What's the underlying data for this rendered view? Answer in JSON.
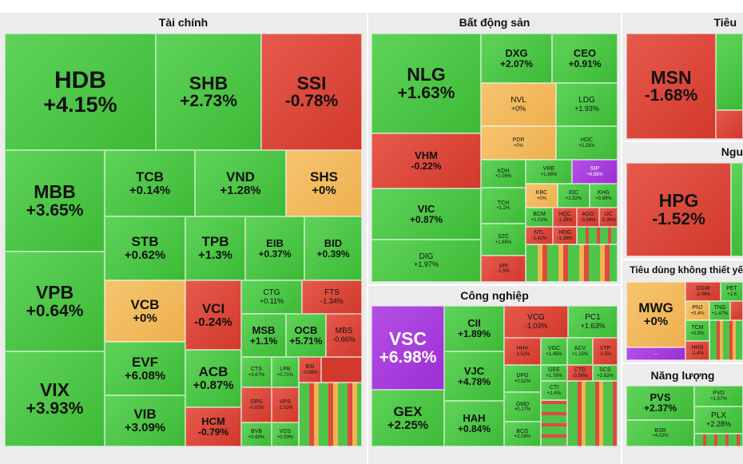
{
  "sectors": {
    "finance": "Tài chính",
    "realestate": "Bất động sản",
    "industrial": "Công nghiệp",
    "staples": "Tiêu",
    "materials": "Ngu",
    "discretionary": "Tiêu dùng không thiết yế",
    "energy": "Năng lượng"
  },
  "more": "...",
  "tiles": {
    "HDB": {
      "t": "HDB",
      "p": "+4.15%"
    },
    "SHB": {
      "t": "SHB",
      "p": "+2.73%"
    },
    "SSI": {
      "t": "SSI",
      "p": "-0.78%"
    },
    "MBB": {
      "t": "MBB",
      "p": "+3.65%"
    },
    "TCB": {
      "t": "TCB",
      "p": "+0.14%"
    },
    "VND": {
      "t": "VND",
      "p": "+1.28%"
    },
    "SHS": {
      "t": "SHS",
      "p": "+0%"
    },
    "STB": {
      "t": "STB",
      "p": "+0.62%"
    },
    "TPB": {
      "t": "TPB",
      "p": "+1.3%"
    },
    "EIB": {
      "t": "EIB",
      "p": "+0.37%"
    },
    "BID": {
      "t": "BID",
      "p": "+0.39%"
    },
    "VPB": {
      "t": "VPB",
      "p": "+0.64%"
    },
    "VCB": {
      "t": "VCB",
      "p": "+0%"
    },
    "VCI": {
      "t": "VCI",
      "p": "-0.24%"
    },
    "CTG": {
      "t": "CTG",
      "p": "+0.11%"
    },
    "FTS": {
      "t": "FTS",
      "p": "-1.34%"
    },
    "MSB": {
      "t": "MSB",
      "p": "+1.1%"
    },
    "OCB": {
      "t": "OCB",
      "p": "+5.71%"
    },
    "MBS": {
      "t": "MBS",
      "p": "-0.66%"
    },
    "VIX": {
      "t": "VIX",
      "p": "+3.93%"
    },
    "EVF": {
      "t": "EVF",
      "p": "+6.08%"
    },
    "ACB": {
      "t": "ACB",
      "p": "+0.87%"
    },
    "CTS": {
      "t": "CTS",
      "p": "+3.67%"
    },
    "LPB": {
      "t": "LPB",
      "p": "+0.71%"
    },
    "BSI": {
      "t": "BSI",
      "p": "-0.98%"
    },
    "VIB": {
      "t": "VIB",
      "p": "+3.09%"
    },
    "HCM": {
      "t": "HCM",
      "p": "-0.79%"
    },
    "ORS": {
      "t": "ORS",
      "p": "-0.92%"
    },
    "VPS": {
      "t": "VPS",
      "p": "-1.02%"
    },
    "BVB": {
      "t": "BVB",
      "p": "+0.69%"
    },
    "VDS": {
      "t": "VDS",
      "p": "+0.59%"
    },
    "NLG": {
      "t": "NLG",
      "p": "+1.63%"
    },
    "DXG": {
      "t": "DXG",
      "p": "+2.07%"
    },
    "CEO": {
      "t": "CEO",
      "p": "+0.91%"
    },
    "NVL": {
      "t": "NVL",
      "p": "+0%"
    },
    "LDG": {
      "t": "LDG",
      "p": "+1.93%"
    },
    "PDR": {
      "t": "PDR",
      "p": "+0%"
    },
    "HDC": {
      "t": "HDC",
      "p": "+2.33%"
    },
    "VHM": {
      "t": "VHM",
      "p": "-0.22%"
    },
    "KDH": {
      "t": "KDH",
      "p": "+1.05%"
    },
    "VRE": {
      "t": "VRE",
      "p": "+1.88%"
    },
    "SIP": {
      "t": "SIP",
      "p": "+6.88%"
    },
    "VIC": {
      "t": "VIC",
      "p": "+0.87%"
    },
    "KBC": {
      "t": "KBC",
      "p": "+0%"
    },
    "IDC": {
      "t": "IDC",
      "p": "+1.52%"
    },
    "KHG": {
      "t": "KHG",
      "p": "+0.88%"
    },
    "TCH": {
      "t": "TCH",
      "p": "+1.2%"
    },
    "BCM": {
      "t": "BCM",
      "p": "+1.01%"
    },
    "HQC": {
      "t": "HQC",
      "p": "-1.28%"
    },
    "AGG": {
      "t": "AGG",
      "p": "-0.56%"
    },
    "IJC": {
      "t": "IJC",
      "p": "-0.36%"
    },
    "SZC": {
      "t": "SZC",
      "p": "+1.85%"
    },
    "NTL": {
      "t": "NTL",
      "p": "-1.42%"
    },
    "HDG": {
      "t": "HDG",
      "p": "-1.38%"
    },
    "DIG": {
      "t": "DIG",
      "p": "+1.97%"
    },
    "VPI": {
      "t": "VPI",
      "p": "-1.5%"
    },
    "VSC": {
      "t": "VSC",
      "p": "+6.98%"
    },
    "CII": {
      "t": "CII",
      "p": "+1.89%"
    },
    "VCG": {
      "t": "VCG",
      "p": "-1.03%"
    },
    "PC1": {
      "t": "PC1",
      "p": "+1.63%"
    },
    "HHV": {
      "t": "HHV",
      "p": "-1.52%"
    },
    "VGC": {
      "t": "VGC",
      "p": "+1.45%"
    },
    "ACV": {
      "t": "ACV",
      "p": "+1.15%"
    },
    "VTP": {
      "t": "VTP",
      "p": "-0.5%"
    },
    "VJC": {
      "t": "VJC",
      "p": "+4.78%"
    },
    "GEE": {
      "t": "GEE",
      "p": "+1.78%"
    },
    "CTD": {
      "t": "CTD",
      "p": "-0.56%"
    },
    "SCS": {
      "t": "SCS",
      "p": "+2.62%"
    },
    "DPG": {
      "t": "DPG",
      "p": "+0.52%"
    },
    "CTI": {
      "t": "CTI",
      "p": "+1.4%"
    },
    "GEX": {
      "t": "GEX",
      "p": "+2.25%"
    },
    "HAH": {
      "t": "HAH",
      "p": "+0.84%"
    },
    "GMD": {
      "t": "GMD",
      "p": "+0.17%"
    },
    "BCG": {
      "t": "BCG",
      "p": "+2.08%"
    },
    "MSN": {
      "t": "MSN",
      "p": "-1.68%"
    },
    "HPG": {
      "t": "HPG",
      "p": "-1.52%"
    },
    "MWG": {
      "t": "MWG",
      "p": "+0%"
    },
    "DGW": {
      "t": "DGW",
      "p": "-2.08%"
    },
    "PET": {
      "t": "PET",
      "p": "+1.6"
    },
    "PNJ": {
      "t": "PNJ",
      "p": "+0.4%"
    },
    "TNG": {
      "t": "TNG",
      "p": "+1.47%"
    },
    "TCM": {
      "t": "TCM",
      "p": "+0.9%"
    },
    "HHS": {
      "t": "HHS",
      "p": "-1.4%"
    },
    "PVS": {
      "t": "PVS",
      "p": "+2.37%"
    },
    "PVD": {
      "t": "PVD",
      "p": "+1.57%"
    },
    "PLX": {
      "t": "PLX",
      "p": "+2.28%"
    },
    "BSR": {
      "t": "BSR",
      "p": "+4.02%"
    }
  }
}
